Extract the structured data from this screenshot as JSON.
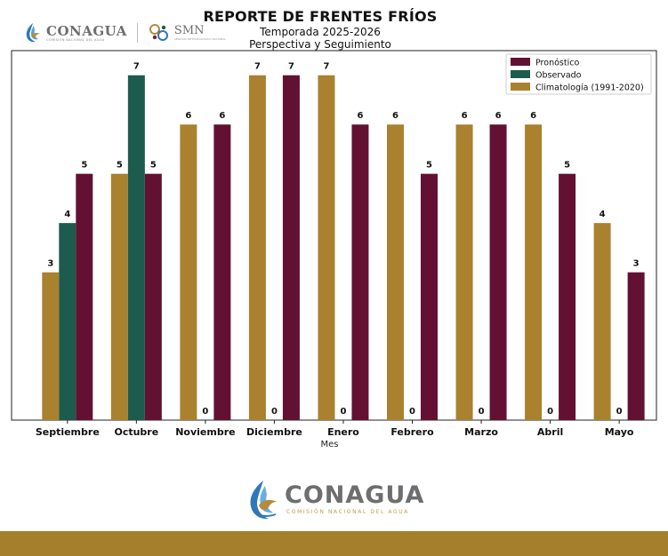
{
  "header": {
    "logo_brand": "CONAGUA",
    "logo_brand_sub": "COMISIÓN NACIONAL DEL AGUA",
    "smn_brand": "SMN",
    "smn_sub": "SERVICIO METEOROLÓGICO NACIONAL"
  },
  "chart_data": {
    "type": "bar",
    "title": "REPORTE DE FRENTES FRÍOS",
    "subtitle_1": "Temporada 2025-2026",
    "subtitle_2": "Perspectiva y Seguimiento",
    "xlabel": "Mes",
    "ylabel": "",
    "ylim": [
      0,
      7.5
    ],
    "grid": false,
    "legend_position": "top-right",
    "categories": [
      "Septiembre",
      "Octubre",
      "Noviembre",
      "Diciembre",
      "Enero",
      "Febrero",
      "Marzo",
      "Abril",
      "Mayo"
    ],
    "series": [
      {
        "name": "Climatología (1991-2020)",
        "color": "#a9812f",
        "values": [
          3,
          5,
          6,
          7,
          7,
          6,
          6,
          6,
          4
        ]
      },
      {
        "name": "Observado",
        "color": "#1d5b4f",
        "values": [
          4,
          7,
          0,
          0,
          0,
          0,
          0,
          0,
          0
        ]
      },
      {
        "name": "Pronóstico",
        "color": "#621132",
        "values": [
          5,
          5,
          6,
          7,
          6,
          5,
          6,
          5,
          3
        ]
      }
    ],
    "legend_order": [
      "Pronóstico",
      "Observado",
      "Climatología (1991-2020)"
    ]
  },
  "footer": {
    "brand": "CONAGUA",
    "brand_sub": "COMISIÓN NACIONAL DEL AGUA",
    "bar_color": "#a57f2c"
  }
}
